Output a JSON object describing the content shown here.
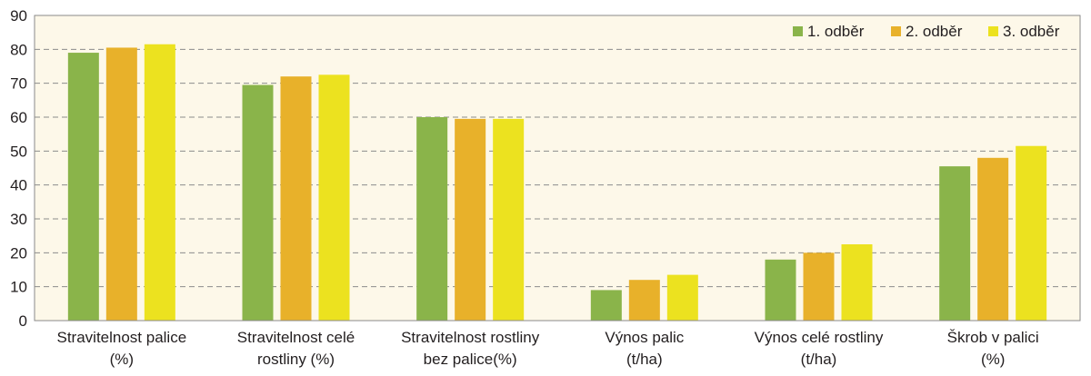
{
  "chart_data": {
    "type": "bar",
    "categories": [
      [
        "Stravitelnost palice",
        "(%)"
      ],
      [
        "Stravitelnost celé",
        "rostliny (%)"
      ],
      [
        "Stravitelnost rostliny",
        "bez palice(%)"
      ],
      [
        "Výnos palic",
        "(t/ha)"
      ],
      [
        "Výnos celé rostliny",
        "(t/ha)"
      ],
      [
        "Škrob v palici",
        "(%)"
      ]
    ],
    "series": [
      {
        "name": "1. odběr",
        "color": "#8ab44a",
        "values": [
          79,
          69.5,
          60,
          9,
          18,
          45.5
        ]
      },
      {
        "name": "2. odběr",
        "color": "#e8b12a",
        "values": [
          80.5,
          72,
          59.5,
          12,
          20,
          48
        ]
      },
      {
        "name": "3. odběr",
        "color": "#ece21f",
        "values": [
          81.5,
          72.5,
          59.5,
          13.5,
          22.5,
          51.5
        ]
      }
    ],
    "ylim": [
      0,
      90
    ],
    "yticks": [
      0,
      10,
      20,
      30,
      40,
      50,
      60,
      70,
      80,
      90
    ],
    "grid": true,
    "legend_position": "top-right",
    "plot_background": "#fdf8e9",
    "title": "",
    "xlabel": "",
    "ylabel": ""
  }
}
